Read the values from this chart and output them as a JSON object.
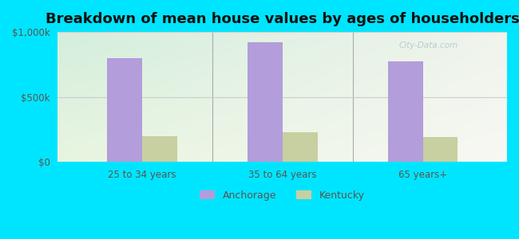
{
  "title": "Breakdown of mean house values by ages of householders",
  "categories": [
    "25 to 34 years",
    "35 to 64 years",
    "65 years+"
  ],
  "anchorage_values": [
    800000,
    920000,
    775000
  ],
  "kentucky_values": [
    195000,
    225000,
    190000
  ],
  "anchorage_color": "#b39ddb",
  "kentucky_color": "#c8cfa0",
  "ylim": [
    0,
    1000000
  ],
  "yticks": [
    0,
    500000,
    1000000
  ],
  "ytick_labels": [
    "$0",
    "$500k",
    "$1,000k"
  ],
  "background_color": "#00e5ff",
  "legend_labels": [
    "Anchorage",
    "Kentucky"
  ],
  "bar_width": 0.25,
  "title_fontsize": 13,
  "watermark": "City-Data.com",
  "divider_color": "#aaaaaa",
  "grid_color": "#cccccc",
  "tick_color": "#555555",
  "tick_fontsize": 8.5
}
